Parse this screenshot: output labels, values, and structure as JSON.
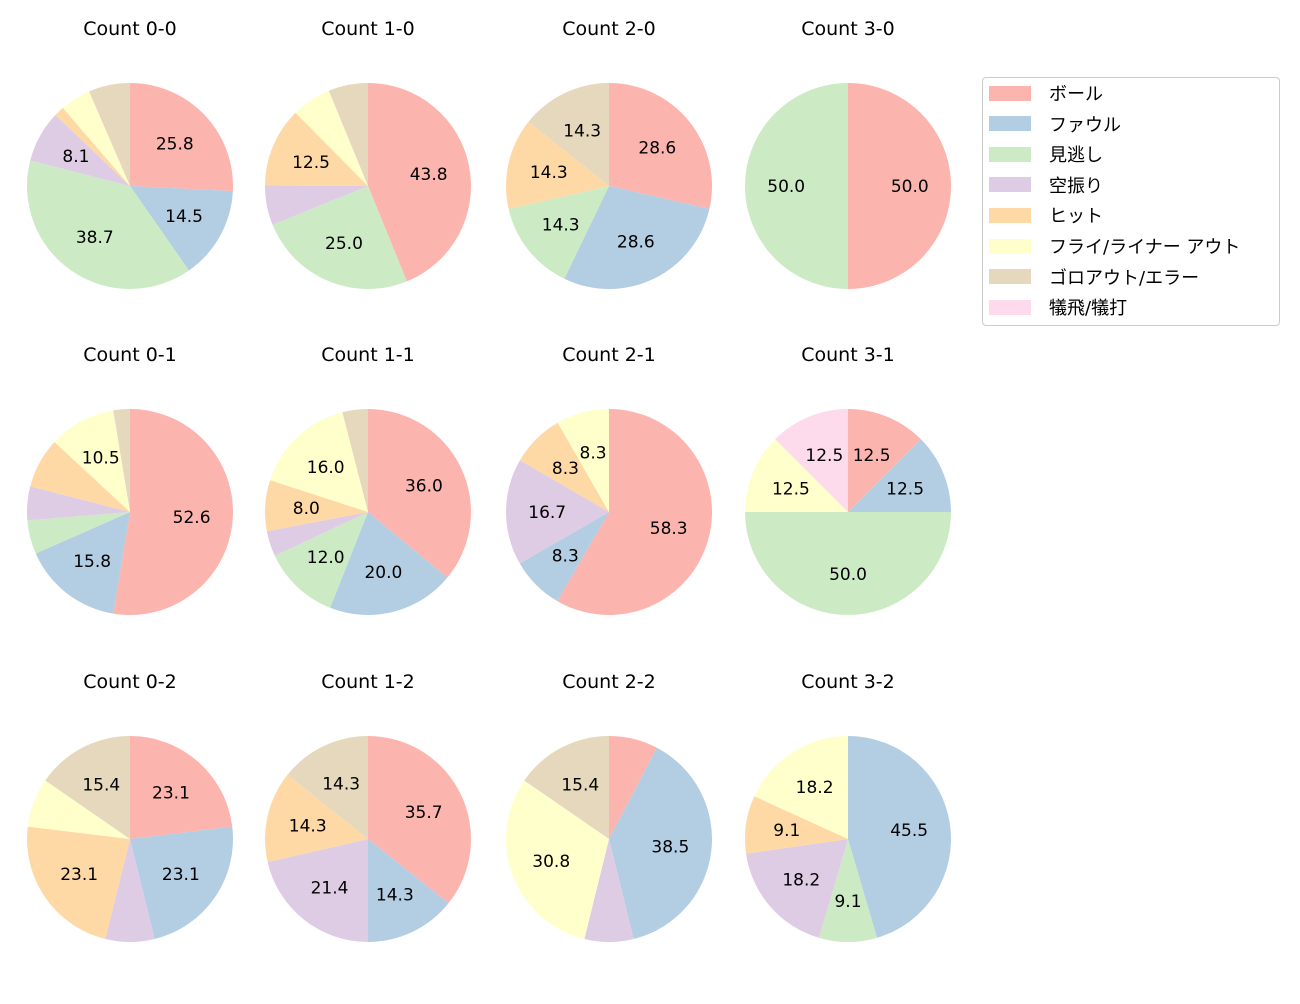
{
  "chart_data": {
    "type": "pie",
    "legend_position": "top-right",
    "legend": [
      "ボール",
      "ファウル",
      "見逃し",
      "空振り",
      "ヒット",
      "フライ/ライナー アウト",
      "ゴロアウト/エラー",
      "犠飛/犠打"
    ],
    "colors": [
      "#fbb4ae",
      "#b3cde3",
      "#ccebc5",
      "#decbe4",
      "#fed9a6",
      "#ffffcc",
      "#e5d8bd",
      "#fddaec"
    ],
    "label_format": "%.1f",
    "charts": [
      {
        "title": "Count 0-0",
        "values": [
          25.8,
          14.5,
          38.7,
          8.1,
          1.6,
          4.8,
          6.5,
          0
        ]
      },
      {
        "title": "Count 1-0",
        "values": [
          43.8,
          0,
          25.0,
          6.2,
          12.5,
          6.2,
          6.2,
          0
        ]
      },
      {
        "title": "Count 2-0",
        "values": [
          28.6,
          28.6,
          14.3,
          0,
          14.3,
          0,
          14.3,
          0
        ]
      },
      {
        "title": "Count 3-0",
        "values": [
          50.0,
          0,
          50.0,
          0,
          0,
          0,
          0,
          0
        ]
      },
      {
        "title": "Count 0-1",
        "values": [
          52.6,
          15.8,
          5.3,
          5.3,
          7.9,
          10.5,
          2.6,
          0
        ]
      },
      {
        "title": "Count 1-1",
        "values": [
          36.0,
          20.0,
          12.0,
          4.0,
          8.0,
          16.0,
          4.0,
          0
        ]
      },
      {
        "title": "Count 2-1",
        "values": [
          58.3,
          8.3,
          0,
          16.7,
          8.3,
          8.3,
          0,
          0
        ]
      },
      {
        "title": "Count 3-1",
        "values": [
          12.5,
          12.5,
          50.0,
          0,
          0,
          12.5,
          0,
          12.5
        ]
      },
      {
        "title": "Count 0-2",
        "values": [
          23.1,
          23.1,
          0,
          7.7,
          23.1,
          7.7,
          15.4,
          0
        ]
      },
      {
        "title": "Count 1-2",
        "values": [
          35.7,
          14.3,
          0,
          21.4,
          14.3,
          0,
          14.3,
          0
        ]
      },
      {
        "title": "Count 2-2",
        "values": [
          7.7,
          38.5,
          0,
          7.7,
          0,
          30.8,
          15.4,
          0
        ]
      },
      {
        "title": "Count 3-2",
        "values": [
          0,
          45.5,
          9.1,
          18.2,
          9.1,
          18.2,
          0,
          0
        ]
      }
    ]
  }
}
